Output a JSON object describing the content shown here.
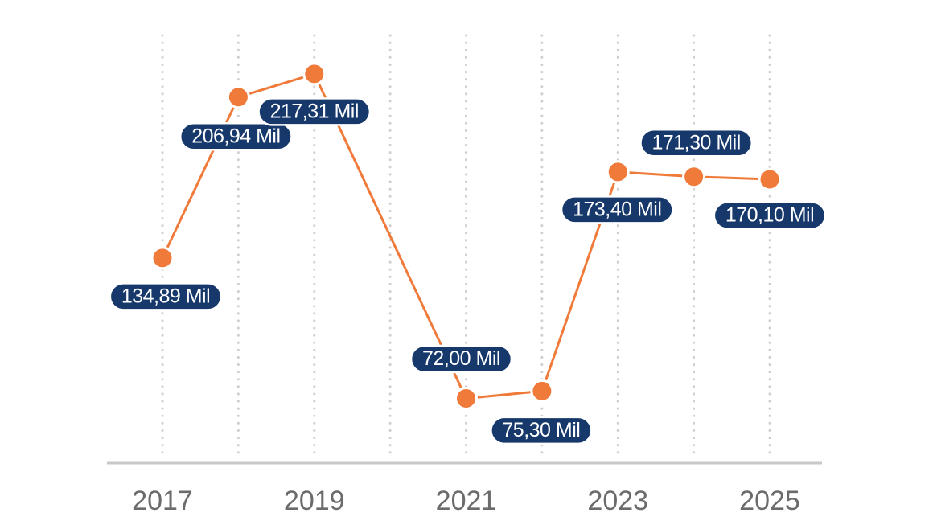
{
  "chart_data": {
    "type": "line",
    "title": "",
    "xlabel": "",
    "ylabel": "",
    "x": [
      2017,
      2018,
      2019,
      2020,
      2021,
      2022,
      2023,
      2024,
      2025
    ],
    "x_tick_labels": [
      "2017",
      "2019",
      "2021",
      "2023",
      "2025"
    ],
    "y_unit": "Mil",
    "series": [
      {
        "values": [
          134.89,
          206.94,
          217.31,
          null,
          72.0,
          75.3,
          173.4,
          171.3,
          170.1
        ],
        "labels": [
          "134,89 Mil",
          "206,94 Mil",
          "217,31 Mil",
          "",
          "72,00 Mil",
          "75,30 Mil",
          "173,40 Mil",
          "171,30 Mil",
          "170,10 Mil"
        ]
      }
    ],
    "ylim": [
      47,
      236
    ],
    "grid": {
      "vertical": true,
      "horizontal": false,
      "style": "dotted"
    },
    "legend": "none",
    "colors": {
      "line": "#f07a3a",
      "marker": "#f07a3a",
      "label_bg": "#16386b",
      "label_text": "#ffffff",
      "grid": "#cfcfcf",
      "axis": "#c8c8c8",
      "tick_text": "#6b6b6b"
    }
  }
}
